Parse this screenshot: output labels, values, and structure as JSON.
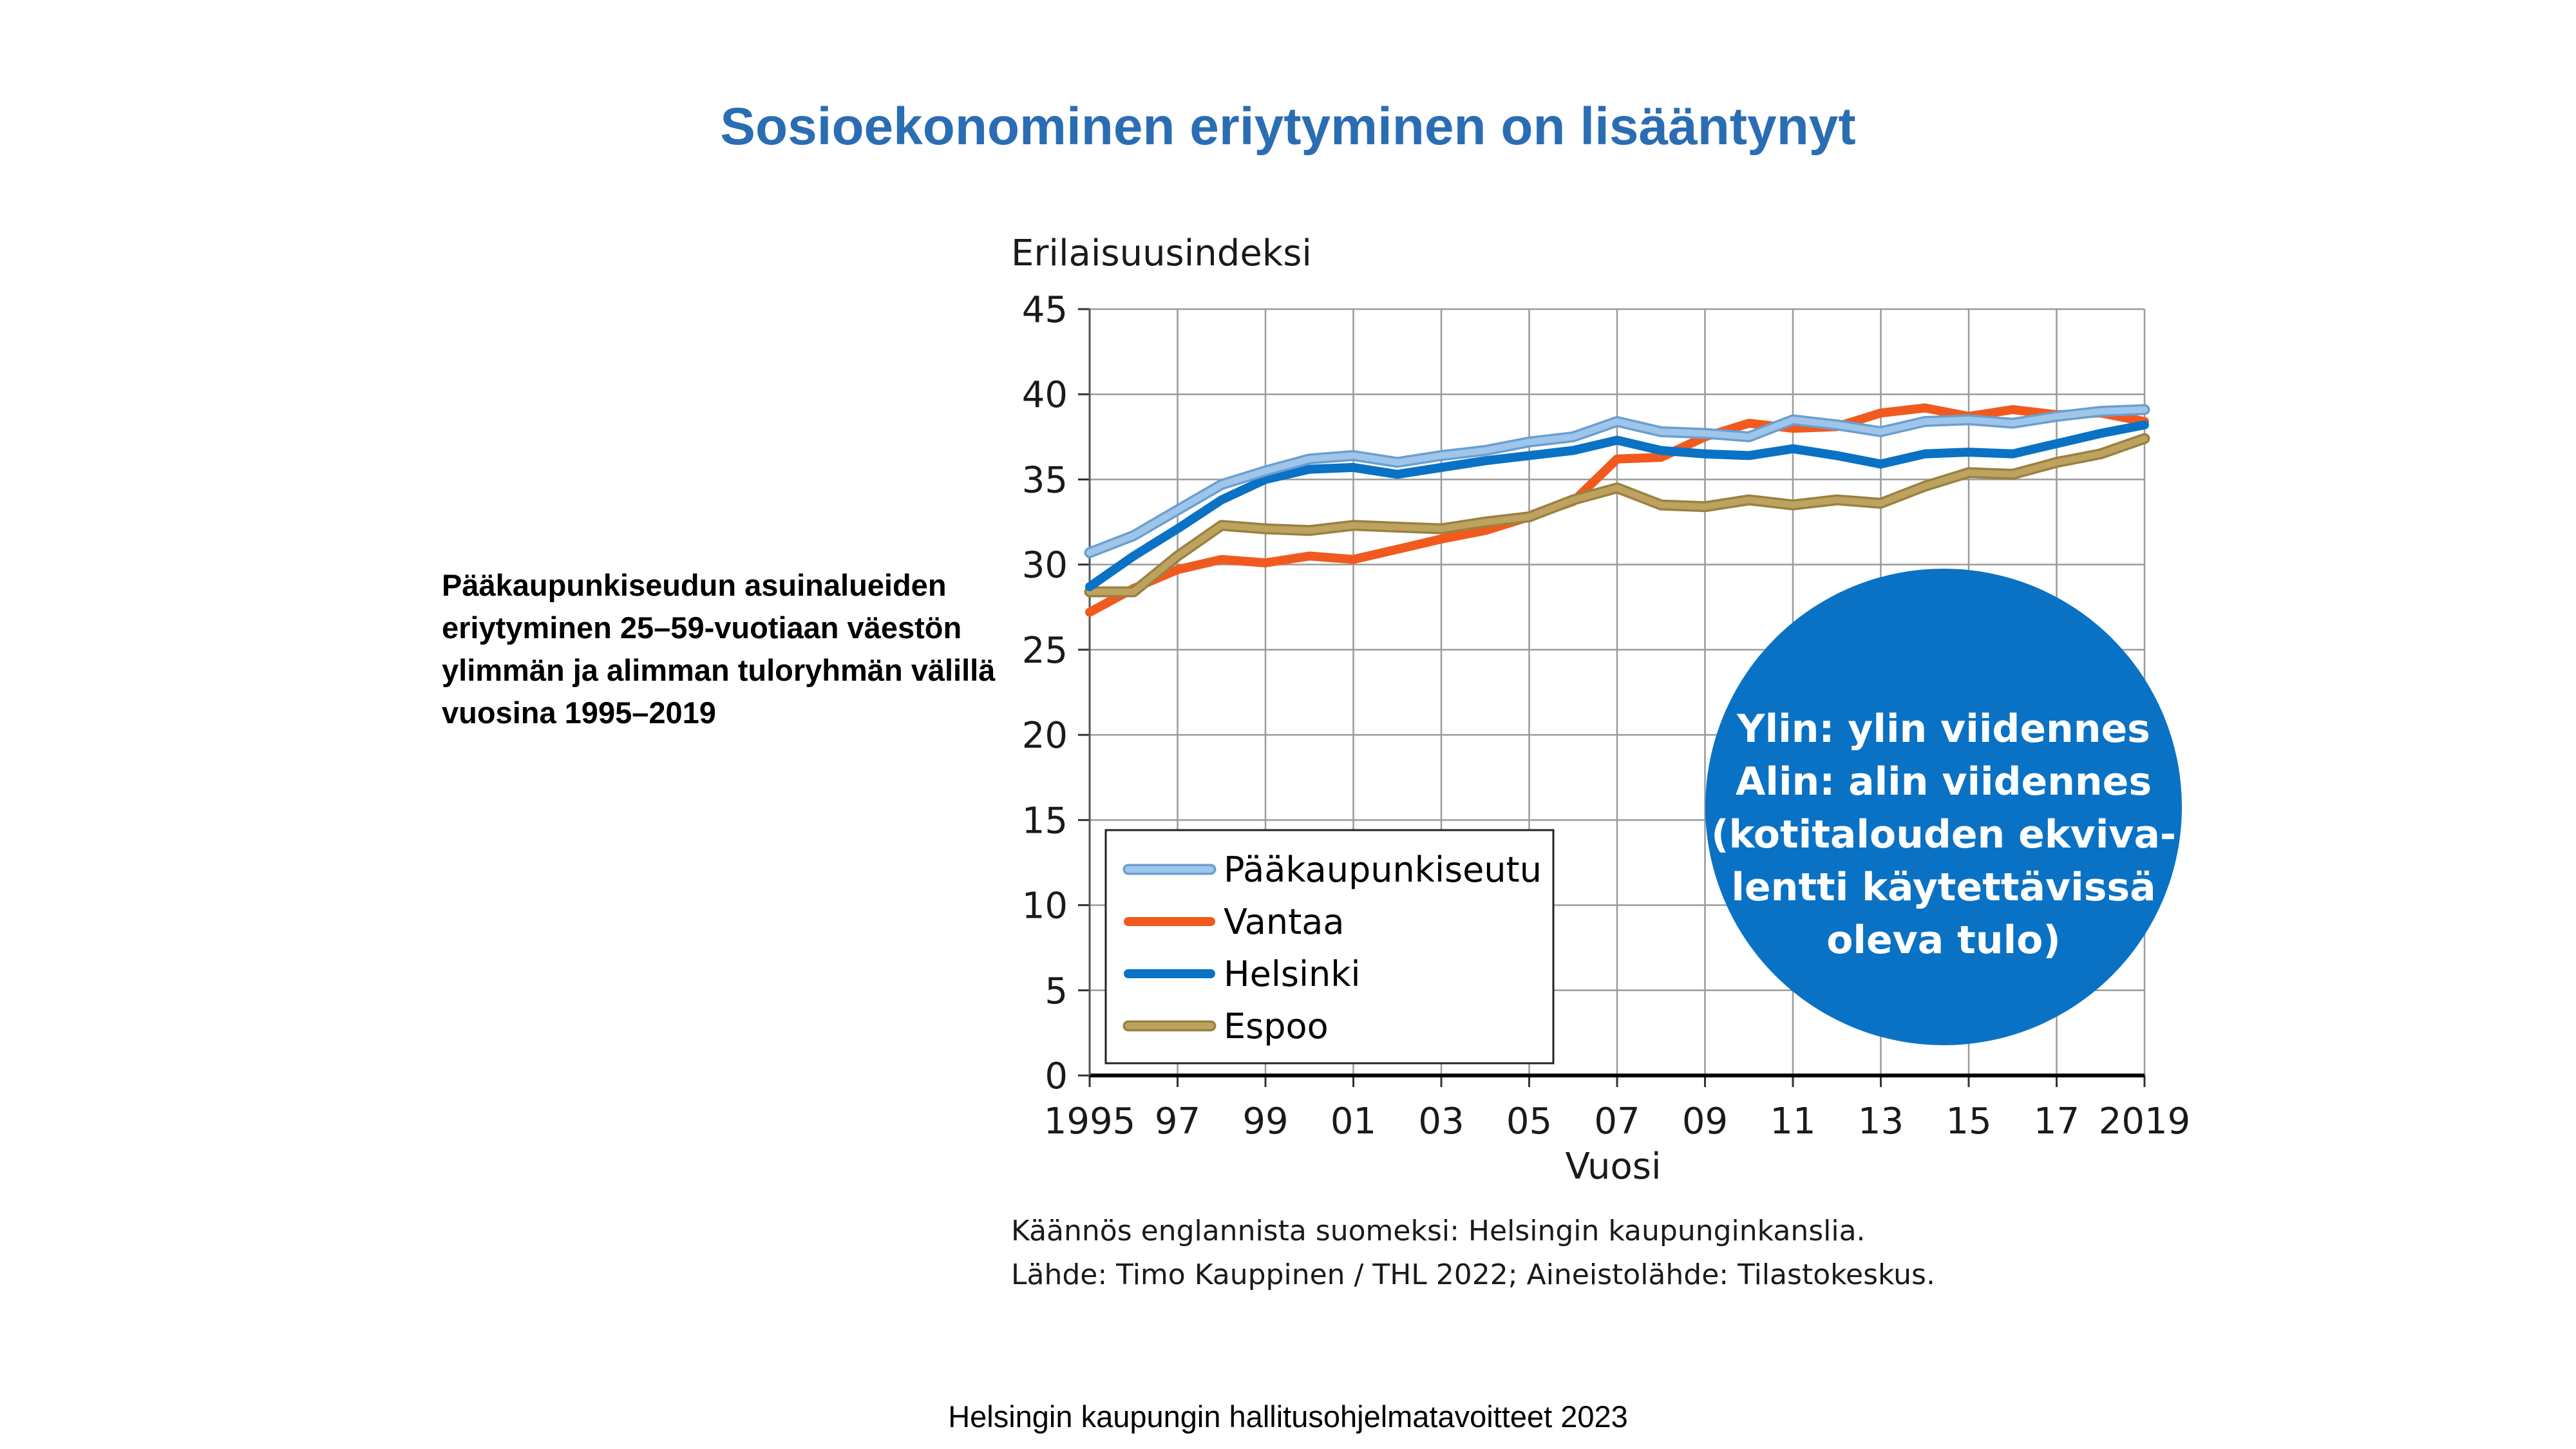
{
  "page": {
    "title": "Sosioekonominen eriytyminen on lisääntynyt",
    "side_note": "Pääkaupunkiseudun asuinalueiden eriytyminen 25–59-vuotiaan väestön ylimmän ja alimman tuloryhmän välillä vuosina 1995–2019",
    "footer": "Helsingin kaupungin hallitusohjelmatavoitteet 2023",
    "source_lines": [
      "Käännös englannista suomeksi: Helsingin kaupunginkanslia.",
      "Lähde: Timo Kauppinen / THL 2022; Aineistolähde: Tilastokeskus."
    ],
    "info_bubble_lines": [
      "Ylin: ylin viidennes",
      "Alin: alin viidennes",
      "(kotitalouden ekviva-",
      "lentti käytettävissä",
      "oleva tulo)"
    ],
    "bubble_color": "#0a72c4"
  },
  "chart_data": {
    "type": "line",
    "title": "",
    "ylabel": "Erilaisuusindeksi",
    "xlabel": "Vuosi",
    "ylim": [
      0,
      45
    ],
    "xlim": [
      1995,
      2019
    ],
    "y_ticks": [
      "0",
      "5",
      "10",
      "15",
      "20",
      "25",
      "30",
      "35",
      "40",
      "45"
    ],
    "x_ticks": [
      {
        "value": 1995,
        "label": "1995"
      },
      {
        "value": 1997,
        "label": "97"
      },
      {
        "value": 1999,
        "label": "99"
      },
      {
        "value": 2001,
        "label": "01"
      },
      {
        "value": 2003,
        "label": "03"
      },
      {
        "value": 2005,
        "label": "05"
      },
      {
        "value": 2007,
        "label": "07"
      },
      {
        "value": 2009,
        "label": "09"
      },
      {
        "value": 2011,
        "label": "11"
      },
      {
        "value": 2013,
        "label": "13"
      },
      {
        "value": 2015,
        "label": "15"
      },
      {
        "value": 2017,
        "label": "17"
      },
      {
        "value": 2019,
        "label": "2019"
      }
    ],
    "grid": true,
    "legend_position": "bottom-left",
    "x": [
      1995,
      1996,
      1997,
      1998,
      1999,
      2000,
      2001,
      2002,
      2003,
      2004,
      2005,
      2006,
      2007,
      2008,
      2009,
      2010,
      2011,
      2012,
      2013,
      2014,
      2015,
      2016,
      2017,
      2018,
      2019
    ],
    "series": [
      {
        "name": "Pääkaupunkiseutu",
        "color": "#9fc6ea",
        "outline": "#6a9fd0",
        "values": [
          30.7,
          31.7,
          33.2,
          34.7,
          35.5,
          36.2,
          36.4,
          36.0,
          36.4,
          36.7,
          37.2,
          37.5,
          38.4,
          37.8,
          37.7,
          37.5,
          38.5,
          38.2,
          37.8,
          38.4,
          38.5,
          38.3,
          38.7,
          39.0,
          39.1
        ]
      },
      {
        "name": "Vantaa",
        "color": "#f15a1f",
        "values": [
          27.2,
          28.6,
          29.7,
          30.3,
          30.1,
          30.5,
          30.3,
          30.9,
          31.5,
          32.0,
          32.8,
          33.7,
          36.2,
          36.3,
          37.5,
          38.3,
          38.0,
          38.1,
          38.9,
          39.2,
          38.7,
          39.1,
          38.8,
          38.9,
          38.4
        ]
      },
      {
        "name": "Helsinki",
        "color": "#0a72c4",
        "values": [
          28.7,
          30.5,
          32.1,
          33.8,
          35.0,
          35.6,
          35.7,
          35.3,
          35.7,
          36.1,
          36.4,
          36.7,
          37.3,
          36.7,
          36.5,
          36.4,
          36.8,
          36.4,
          35.9,
          36.5,
          36.6,
          36.5,
          37.1,
          37.7,
          38.2
        ]
      },
      {
        "name": "Espoo",
        "color": "#bda35f",
        "outline": "#9b8140",
        "values": [
          28.4,
          28.4,
          30.5,
          32.3,
          32.1,
          32.0,
          32.3,
          32.2,
          32.1,
          32.5,
          32.8,
          33.8,
          34.5,
          33.5,
          33.4,
          33.8,
          33.5,
          33.8,
          33.6,
          34.6,
          35.4,
          35.3,
          36.0,
          36.5,
          37.4
        ]
      }
    ]
  }
}
